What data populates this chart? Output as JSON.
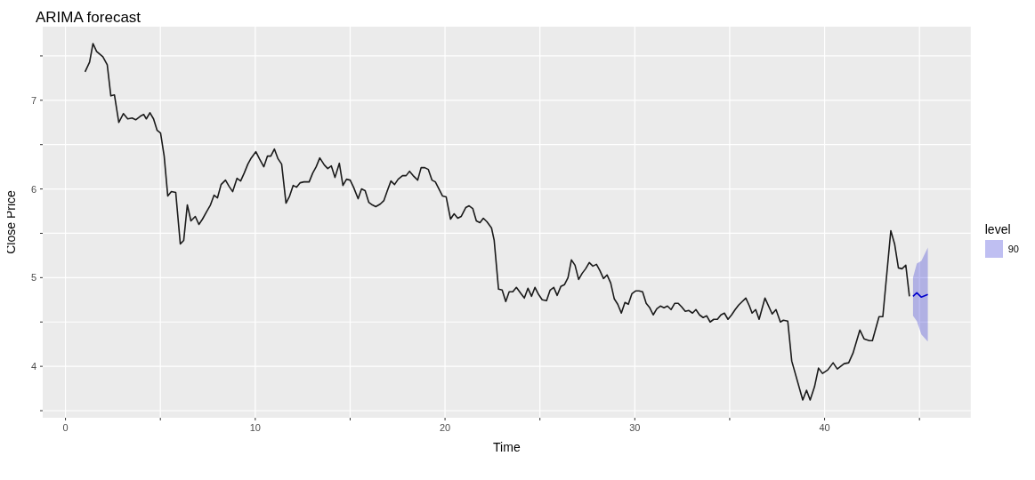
{
  "chart_data": {
    "type": "line",
    "title": "ARIMA forecast",
    "xlabel": "Time",
    "ylabel": "Close Price",
    "legend_title": "level",
    "legend": "right",
    "grid": true,
    "xlim": [
      -1.2,
      47.7
    ],
    "ylim": [
      3.42,
      7.83
    ],
    "xticks": [
      {
        "value": 0,
        "label": "0"
      },
      {
        "value": 5,
        "label": null
      },
      {
        "value": 10,
        "label": "10"
      },
      {
        "value": 15,
        "label": null
      },
      {
        "value": 20,
        "label": "20"
      },
      {
        "value": 25,
        "label": null
      },
      {
        "value": 30,
        "label": "30"
      },
      {
        "value": 35,
        "label": null
      },
      {
        "value": 40,
        "label": "40"
      },
      {
        "value": 45,
        "label": null
      }
    ],
    "yticks": [
      {
        "value": 3.5,
        "label": null
      },
      {
        "value": 4,
        "label": "4"
      },
      {
        "value": 4.5,
        "label": null
      },
      {
        "value": 5,
        "label": "5"
      },
      {
        "value": 5.5,
        "label": null
      },
      {
        "value": 6,
        "label": "6"
      },
      {
        "value": 6.5,
        "label": null
      },
      {
        "value": 7,
        "label": "7"
      },
      {
        "value": 7.5,
        "label": null
      }
    ],
    "series": [
      {
        "color": "#1a1a1a",
        "x": [
          1.03,
          1.27,
          1.45,
          1.64,
          1.97,
          2.2,
          2.39,
          2.58,
          2.81,
          3.05,
          3.28,
          3.51,
          3.7,
          3.94,
          4.12,
          4.26,
          4.45,
          4.64,
          4.83,
          5.01,
          5.2,
          5.39,
          5.58,
          5.81,
          6.05,
          6.23,
          6.42,
          6.61,
          6.84,
          7.03,
          7.22,
          7.45,
          7.64,
          7.83,
          8.01,
          8.2,
          8.43,
          8.62,
          8.81,
          9.04,
          9.23,
          9.42,
          9.61,
          9.79,
          10.03,
          10.22,
          10.45,
          10.64,
          10.82,
          11.01,
          11.2,
          11.39,
          11.62,
          11.81,
          12.0,
          12.18,
          12.37,
          12.56,
          12.84,
          13.03,
          13.21,
          13.4,
          13.64,
          13.82,
          14.01,
          14.2,
          14.43,
          14.62,
          14.81,
          15.0,
          15.18,
          15.42,
          15.6,
          15.79,
          15.98,
          16.17,
          16.35,
          16.59,
          16.78,
          16.96,
          17.15,
          17.34,
          17.53,
          17.76,
          17.95,
          18.13,
          18.32,
          18.56,
          18.74,
          18.93,
          19.12,
          19.31,
          19.49,
          19.68,
          19.87,
          20.06,
          20.29,
          20.48,
          20.67,
          20.85,
          21.09,
          21.27,
          21.46,
          21.65,
          21.84,
          22.02,
          22.21,
          22.45,
          22.59,
          22.82,
          23.01,
          23.2,
          23.38,
          23.57,
          23.76,
          24.0,
          24.18,
          24.37,
          24.56,
          24.74,
          24.93,
          25.12,
          25.35,
          25.54,
          25.73,
          25.91,
          26.1,
          26.29,
          26.48,
          26.66,
          26.85,
          27.04,
          27.23,
          27.41,
          27.6,
          27.79,
          27.98,
          28.16,
          28.35,
          28.54,
          28.73,
          28.92,
          29.1,
          29.29,
          29.48,
          29.66,
          29.85,
          30.04,
          30.22,
          30.41,
          30.6,
          30.79,
          30.97,
          31.16,
          31.35,
          31.54,
          31.72,
          31.91,
          32.1,
          32.29,
          32.47,
          32.66,
          32.85,
          33.04,
          33.22,
          33.41,
          33.6,
          33.79,
          33.97,
          34.16,
          34.35,
          34.54,
          34.72,
          34.91,
          35.1,
          35.29,
          35.47,
          35.66,
          35.85,
          36.04,
          36.18,
          36.37,
          36.55,
          36.86,
          37.24,
          37.44,
          37.67,
          37.83,
          38.06,
          38.27,
          38.85,
          39.05,
          39.24,
          39.47,
          39.68,
          39.89,
          40.17,
          40.45,
          40.67,
          41.03,
          41.27,
          41.5,
          41.86,
          42.08,
          42.36,
          42.52,
          42.87,
          43.07,
          43.49,
          43.69,
          43.89,
          44.08,
          44.28,
          44.47
        ],
        "values": [
          7.32,
          7.43,
          7.64,
          7.55,
          7.49,
          7.4,
          7.05,
          7.06,
          6.75,
          6.85,
          6.79,
          6.8,
          6.78,
          6.82,
          6.84,
          6.79,
          6.86,
          6.79,
          6.66,
          6.63,
          6.37,
          5.92,
          5.97,
          5.96,
          5.38,
          5.42,
          5.82,
          5.64,
          5.69,
          5.6,
          5.66,
          5.75,
          5.82,
          5.93,
          5.9,
          6.05,
          6.1,
          6.03,
          5.97,
          6.12,
          6.09,
          6.18,
          6.28,
          6.35,
          6.42,
          6.34,
          6.25,
          6.37,
          6.37,
          6.45,
          6.34,
          6.28,
          5.84,
          5.92,
          6.04,
          6.02,
          6.07,
          6.08,
          6.08,
          6.18,
          6.25,
          6.35,
          6.27,
          6.23,
          6.26,
          6.13,
          6.29,
          6.04,
          6.11,
          6.1,
          6.02,
          5.89,
          6.0,
          5.98,
          5.85,
          5.82,
          5.8,
          5.83,
          5.87,
          5.98,
          6.09,
          6.05,
          6.11,
          6.15,
          6.15,
          6.2,
          6.15,
          6.1,
          6.24,
          6.24,
          6.22,
          6.1,
          6.08,
          6.0,
          5.92,
          5.91,
          5.66,
          5.72,
          5.67,
          5.69,
          5.79,
          5.81,
          5.78,
          5.64,
          5.62,
          5.67,
          5.63,
          5.56,
          5.42,
          4.87,
          4.86,
          4.73,
          4.84,
          4.84,
          4.89,
          4.82,
          4.77,
          4.88,
          4.79,
          4.89,
          4.81,
          4.75,
          4.74,
          4.86,
          4.89,
          4.8,
          4.9,
          4.92,
          5.0,
          5.2,
          5.14,
          4.98,
          5.05,
          5.1,
          5.17,
          5.13,
          5.15,
          5.08,
          4.99,
          5.03,
          4.94,
          4.76,
          4.7,
          4.6,
          4.72,
          4.7,
          4.82,
          4.85,
          4.85,
          4.84,
          4.71,
          4.66,
          4.58,
          4.65,
          4.68,
          4.66,
          4.68,
          4.64,
          4.71,
          4.71,
          4.67,
          4.62,
          4.63,
          4.6,
          4.64,
          4.58,
          4.55,
          4.57,
          4.5,
          4.53,
          4.53,
          4.58,
          4.6,
          4.53,
          4.58,
          4.64,
          4.69,
          4.73,
          4.77,
          4.68,
          4.6,
          4.64,
          4.53,
          4.77,
          4.59,
          4.64,
          4.5,
          4.52,
          4.51,
          4.06,
          3.62,
          3.73,
          3.62,
          3.77,
          3.98,
          3.92,
          3.96,
          4.04,
          3.97,
          4.03,
          4.04,
          4.15,
          4.41,
          4.31,
          4.29,
          4.29,
          4.56,
          4.56,
          5.53,
          5.38,
          5.11,
          5.1,
          5.14,
          4.79
        ]
      },
      {
        "name": "90",
        "color": "#0000cc",
        "x": [
          44.66,
          44.86,
          45.1,
          45.44
        ],
        "values": [
          4.79,
          4.83,
          4.78,
          4.81
        ],
        "lower": [
          4.57,
          4.51,
          4.36,
          4.28
        ],
        "upper": [
          5.0,
          5.16,
          5.19,
          5.34
        ]
      }
    ]
  }
}
